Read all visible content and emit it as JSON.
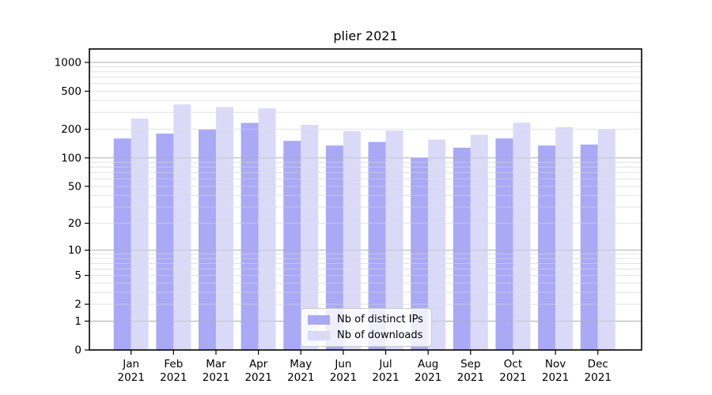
{
  "figure": {
    "title": "plier 2021"
  },
  "colors": {
    "background": "#ffffff",
    "axis": "#000000",
    "grid_major": "#b0b0b0",
    "grid_minor": "#e2e2e2",
    "bar_distinct_ips": "#a9a9f5",
    "bar_downloads": "#dadaf8",
    "legend_border": "#cccccc"
  },
  "chart_data": {
    "type": "bar",
    "title": "plier 2021",
    "categories": [
      "Jan 2021",
      "Feb 2021",
      "Mar 2021",
      "Apr 2021",
      "May 2021",
      "Jun 2021",
      "Jul 2021",
      "Aug 2021",
      "Sep 2021",
      "Oct 2021",
      "Nov 2021",
      "Dec 2021"
    ],
    "series": [
      {
        "name": "Nb of distinct IPs",
        "color": "#a9a9f5",
        "values": [
          160,
          180,
          198,
          233,
          151,
          135,
          147,
          100,
          128,
          160,
          135,
          138
        ]
      },
      {
        "name": "Nb of downloads",
        "color": "#dadaf8",
        "values": [
          259,
          364,
          341,
          331,
          222,
          191,
          194,
          156,
          175,
          234,
          210,
          198
        ]
      }
    ],
    "xlabel": "",
    "ylabel": "",
    "yscale": "log1p",
    "yticks": [
      0,
      1,
      2,
      5,
      10,
      20,
      50,
      100,
      200,
      500,
      1000
    ],
    "yticks_minor": [
      3,
      4,
      6,
      7,
      8,
      9,
      30,
      40,
      60,
      70,
      80,
      90,
      300,
      400,
      600,
      700,
      800,
      900
    ],
    "ylim": [
      0,
      1380
    ],
    "grid": true,
    "legend_position": "lower center"
  }
}
